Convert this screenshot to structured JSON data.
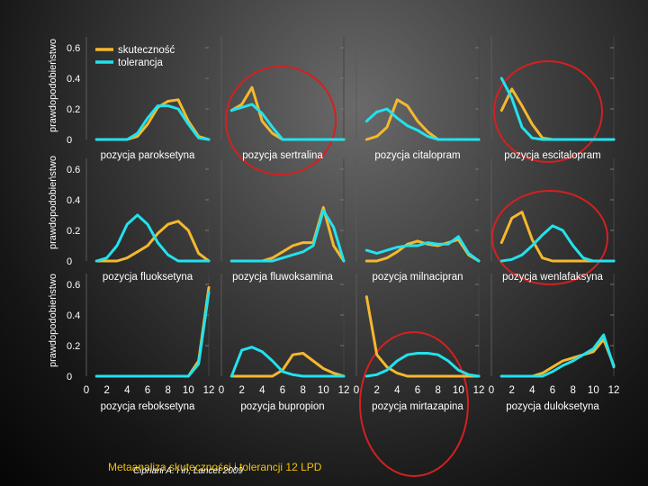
{
  "colors": {
    "efficacy": "#f5b82e",
    "tolerance": "#22e2ee",
    "circle": "#d42020",
    "text": "#ffffff",
    "footer": "#f2c200"
  },
  "chart_data": {
    "type": "line",
    "legend": {
      "placement": "top-left",
      "entries": [
        {
          "name": "skuteczność",
          "color": "#f5b82e"
        },
        {
          "name": "tolerancja",
          "color": "#22e2ee"
        }
      ]
    },
    "ylabel": "prawdopodobieństwo",
    "yticks": [
      "0",
      "0.2",
      "0.4",
      "0.6"
    ],
    "xticks": [
      "0",
      "2",
      "4",
      "6",
      "8",
      "10",
      "12"
    ],
    "xlim": [
      0,
      12
    ],
    "ylim": [
      0,
      0.6
    ],
    "highlighted_panels": [
      "pozycja sertralina",
      "pozycja escitalopram",
      "pozycja wenlafaksyna",
      "pozycja mirtazapina"
    ],
    "panels": [
      {
        "title": "pozycja paroksetyna",
        "row": 0,
        "col": 0,
        "x": [
          1,
          2,
          3,
          4,
          5,
          6,
          7,
          8,
          9,
          10,
          11,
          12
        ],
        "series": [
          {
            "name": "skuteczność",
            "values": [
              0,
              0,
              0,
              0,
              0.02,
              0.1,
              0.21,
              0.25,
              0.26,
              0.12,
              0.02,
              0
            ]
          },
          {
            "name": "tolerancja",
            "values": [
              0,
              0,
              0,
              0,
              0.04,
              0.14,
              0.22,
              0.22,
              0.2,
              0.1,
              0.01,
              0
            ]
          }
        ]
      },
      {
        "title": "pozycja sertralina",
        "row": 0,
        "col": 1,
        "x": [
          1,
          2,
          3,
          4,
          5,
          6,
          7,
          8,
          9,
          10,
          11,
          12
        ],
        "series": [
          {
            "name": "skuteczność",
            "values": [
              0.19,
              0.23,
              0.34,
              0.12,
              0.04,
              0,
              0,
              0,
              0,
              0,
              0,
              0
            ]
          },
          {
            "name": "tolerancja",
            "values": [
              0.19,
              0.21,
              0.23,
              0.17,
              0.08,
              0,
              0,
              0,
              0,
              0,
              0,
              0
            ]
          }
        ]
      },
      {
        "title": "pozycja citalopram",
        "row": 0,
        "col": 2,
        "x": [
          1,
          2,
          3,
          4,
          5,
          6,
          7,
          8,
          9,
          10,
          11,
          12
        ],
        "series": [
          {
            "name": "skuteczność",
            "values": [
              0,
              0.02,
              0.08,
              0.26,
              0.22,
              0.12,
              0.05,
              0,
              0,
              0,
              0,
              0
            ]
          },
          {
            "name": "tolerancja",
            "values": [
              0.12,
              0.18,
              0.2,
              0.14,
              0.09,
              0.06,
              0.02,
              0,
              0,
              0,
              0,
              0
            ]
          }
        ]
      },
      {
        "title": "pozycja escitalopram",
        "row": 0,
        "col": 3,
        "x": [
          1,
          2,
          3,
          4,
          5,
          6,
          7,
          8,
          9,
          10,
          11,
          12
        ],
        "series": [
          {
            "name": "skuteczność",
            "values": [
              0.19,
              0.33,
              0.22,
              0.1,
              0.01,
              0,
              0,
              0,
              0,
              0,
              0,
              0
            ]
          },
          {
            "name": "tolerancja",
            "values": [
              0.4,
              0.27,
              0.08,
              0.01,
              0,
              0,
              0,
              0,
              0,
              0,
              0,
              0
            ]
          }
        ]
      },
      {
        "title": "pozycja fluoksetyna",
        "row": 1,
        "col": 0,
        "x": [
          1,
          2,
          3,
          4,
          5,
          6,
          7,
          8,
          9,
          10,
          11,
          12
        ],
        "series": [
          {
            "name": "skuteczność",
            "values": [
              0,
              0,
              0,
              0.02,
              0.06,
              0.1,
              0.18,
              0.24,
              0.26,
              0.2,
              0.05,
              0
            ]
          },
          {
            "name": "tolerancja",
            "values": [
              0,
              0.02,
              0.1,
              0.24,
              0.3,
              0.24,
              0.12,
              0.04,
              0,
              0,
              0,
              0
            ]
          }
        ]
      },
      {
        "title": "pozycja fluwoksamina",
        "row": 1,
        "col": 1,
        "x": [
          1,
          2,
          3,
          4,
          5,
          6,
          7,
          8,
          9,
          10,
          11,
          12
        ],
        "series": [
          {
            "name": "skuteczność",
            "values": [
              0,
              0,
              0,
              0,
              0.02,
              0.06,
              0.1,
              0.12,
              0.12,
              0.35,
              0.1,
              0
            ]
          },
          {
            "name": "tolerancja",
            "values": [
              0,
              0,
              0,
              0,
              0,
              0.02,
              0.04,
              0.06,
              0.1,
              0.33,
              0.22,
              0
            ]
          }
        ]
      },
      {
        "title": "pozycja milnacipran",
        "row": 1,
        "col": 2,
        "x": [
          1,
          2,
          3,
          4,
          5,
          6,
          7,
          8,
          9,
          10,
          11,
          12
        ],
        "series": [
          {
            "name": "skuteczność",
            "values": [
              0,
              0,
              0.02,
              0.06,
              0.11,
              0.13,
              0.11,
              0.1,
              0.12,
              0.14,
              0.04,
              0
            ]
          },
          {
            "name": "tolerancja",
            "values": [
              0.07,
              0.05,
              0.07,
              0.09,
              0.1,
              0.1,
              0.12,
              0.11,
              0.11,
              0.16,
              0.05,
              0
            ]
          }
        ]
      },
      {
        "title": "pozycja wenlafaksyna",
        "row": 1,
        "col": 3,
        "x": [
          1,
          2,
          3,
          4,
          5,
          6,
          7,
          8,
          9,
          10,
          11,
          12
        ],
        "series": [
          {
            "name": "skuteczność",
            "values": [
              0.12,
              0.28,
              0.32,
              0.14,
              0.02,
              0,
              0,
              0,
              0,
              0,
              0,
              0
            ]
          },
          {
            "name": "tolerancja",
            "values": [
              0,
              0.01,
              0.04,
              0.1,
              0.17,
              0.23,
              0.2,
              0.1,
              0.02,
              0,
              0,
              0
            ]
          }
        ]
      },
      {
        "title": "pozycja reboksetyna",
        "row": 2,
        "col": 0,
        "x": [
          1,
          2,
          3,
          4,
          5,
          6,
          7,
          8,
          9,
          10,
          11,
          12
        ],
        "series": [
          {
            "name": "skuteczność",
            "values": [
              0,
              0,
              0,
              0,
              0,
              0,
              0,
              0,
              0,
              0,
              0.1,
              0.58
            ]
          },
          {
            "name": "tolerancja",
            "values": [
              0,
              0,
              0,
              0,
              0,
              0,
              0,
              0,
              0,
              0,
              0.08,
              0.55
            ]
          }
        ]
      },
      {
        "title": "pozycja bupropion",
        "row": 2,
        "col": 1,
        "x": [
          1,
          2,
          3,
          4,
          5,
          6,
          7,
          8,
          9,
          10,
          11,
          12
        ],
        "series": [
          {
            "name": "skuteczność",
            "values": [
              0,
              0,
              0,
              0,
              0,
              0.04,
              0.14,
              0.15,
              0.1,
              0.05,
              0.02,
              0
            ]
          },
          {
            "name": "tolerancja",
            "values": [
              0,
              0.17,
              0.19,
              0.16,
              0.1,
              0.03,
              0.01,
              0,
              0,
              0,
              0,
              0
            ]
          }
        ]
      },
      {
        "title": "pozycja mirtazapina",
        "row": 2,
        "col": 2,
        "x": [
          1,
          2,
          3,
          4,
          5,
          6,
          7,
          8,
          9,
          10,
          11,
          12
        ],
        "series": [
          {
            "name": "skuteczność",
            "values": [
              0.52,
              0.14,
              0.06,
              0.02,
              0,
              0,
              0,
              0,
              0,
              0,
              0,
              0
            ]
          },
          {
            "name": "tolerancja",
            "values": [
              0,
              0.01,
              0.04,
              0.1,
              0.14,
              0.15,
              0.15,
              0.14,
              0.1,
              0.04,
              0.01,
              0
            ]
          }
        ]
      },
      {
        "title": "pozycja duloksetyna",
        "row": 2,
        "col": 3,
        "x": [
          1,
          2,
          3,
          4,
          5,
          6,
          7,
          8,
          9,
          10,
          11,
          12
        ],
        "series": [
          {
            "name": "skuteczność",
            "values": [
              0,
              0,
              0,
              0,
              0.02,
              0.06,
              0.1,
              0.12,
              0.14,
              0.16,
              0.24,
              0.07
            ]
          },
          {
            "name": "tolerancja",
            "values": [
              0,
              0,
              0,
              0,
              0,
              0.03,
              0.07,
              0.1,
              0.14,
              0.18,
              0.27,
              0.06
            ]
          }
        ]
      }
    ]
  },
  "footer": {
    "note": "Metaanaliza skuteczności i tolerancji 12 LPD",
    "cite": "Cipriani A. i in, Lancet 2009"
  }
}
